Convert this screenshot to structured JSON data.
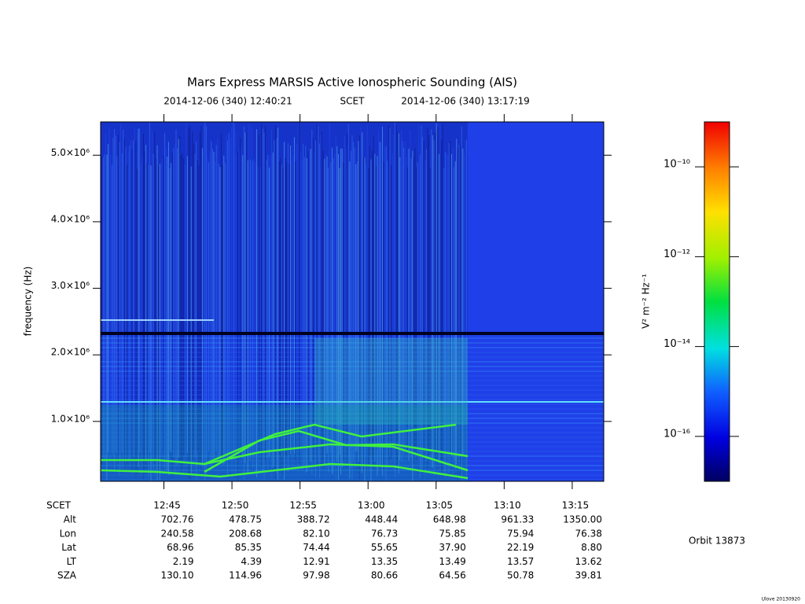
{
  "chart_data": {
    "type": "spectrogram",
    "title": "Mars Express MARSIS Active Ionospheric Sounding (AIS)",
    "subtitle_start": "2014-12-06 (340) 12:40:21",
    "subtitle_scet": "SCET",
    "subtitle_end": "2014-12-06 (340) 13:17:19",
    "y_label": "frequency (Hz)",
    "xlim": [
      "12:40:21",
      "13:17:19"
    ],
    "xticks": [
      "12:45",
      "12:50",
      "12:55",
      "13:00",
      "13:05",
      "13:10",
      "13:15"
    ],
    "ylim": [
      100000,
      5500000
    ],
    "yticks": [
      {
        "value": 1000000,
        "label": "1.0×10⁶"
      },
      {
        "value": 2000000,
        "label": "2.0×10⁶"
      },
      {
        "value": 3000000,
        "label": "3.0×10⁶"
      },
      {
        "value": 4000000,
        "label": "4.0×10⁶"
      },
      {
        "value": 5000000,
        "label": "5.0×10⁶"
      }
    ],
    "colorbar": {
      "label": "V² m⁻² Hz⁻¹",
      "log": true,
      "lim": [
        1e-17,
        1e-09
      ],
      "ticks": [
        {
          "value": 1e-10,
          "label": "10⁻¹⁰"
        },
        {
          "value": 1e-12,
          "label": "10⁻¹²"
        },
        {
          "value": 1e-14,
          "label": "10⁻¹⁴"
        },
        {
          "value": 1e-16,
          "label": "10⁻¹⁶"
        }
      ]
    },
    "ephemeris": {
      "time_label": "SCET",
      "rows": [
        {
          "name": "Alt",
          "values": [
            "702.76",
            "478.75",
            "388.72",
            "448.44",
            "648.98",
            "961.33",
            "1350.00"
          ]
        },
        {
          "name": "Lon",
          "values": [
            "240.58",
            "208.68",
            "82.10",
            "76.73",
            "75.85",
            "75.94",
            "76.38"
          ]
        },
        {
          "name": "Lat",
          "values": [
            "68.96",
            "85.35",
            "74.44",
            "55.65",
            "37.90",
            "22.19",
            "8.80"
          ]
        },
        {
          "name": "LT",
          "values": [
            "2.19",
            "4.39",
            "12.91",
            "13.35",
            "13.49",
            "13.57",
            "13.62"
          ]
        },
        {
          "name": "SZA",
          "values": [
            "130.10",
            "114.96",
            "97.98",
            "80.66",
            "64.56",
            "50.78",
            "39.81"
          ]
        }
      ]
    },
    "orbit": "Orbit 13873",
    "footer": "Ulove 20130920"
  }
}
